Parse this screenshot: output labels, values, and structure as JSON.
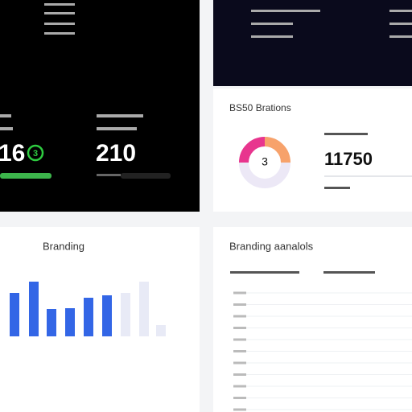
{
  "top_left_panel": {
    "metric_a": "16",
    "metric_a_badge": "3",
    "metric_b": "210"
  },
  "status_card": {
    "title": "BS50 Brations",
    "donut_center": "3",
    "metric": "11750"
  },
  "bar_card": {
    "title": "Branding",
    "bars": [
      {
        "color": "#3366e6",
        "values": [
          54,
          68,
          34,
          35,
          48,
          51
        ]
      },
      {
        "color": "#e8eaf6",
        "values": [
          54,
          68,
          14
        ]
      }
    ]
  },
  "analysis_card": {
    "title": "Branding aanalols"
  }
}
